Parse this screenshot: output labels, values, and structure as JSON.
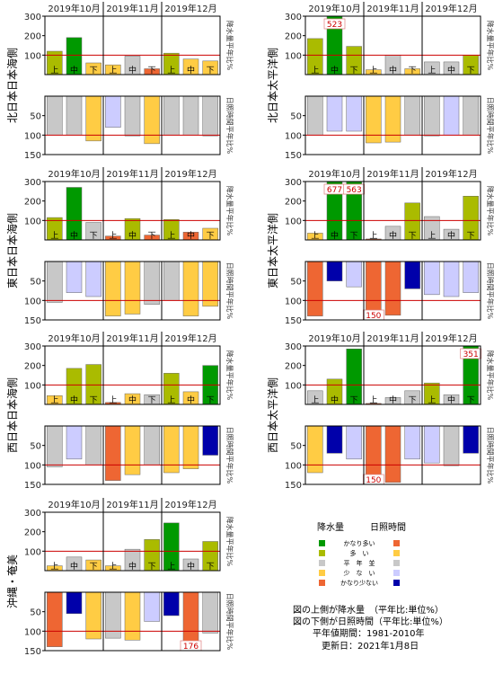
{
  "months": [
    "2019年10月",
    "2019年11月",
    "2019年12月"
  ],
  "periods": [
    "上",
    "中",
    "下"
  ],
  "precip_ticks": [
    100,
    200,
    300
  ],
  "sun_ticks": [
    50,
    100,
    150
  ],
  "side_label_precip": "降水量平年比%",
  "side_label_sun": "日照時間平年比%",
  "colors": {
    "very_many": "#009900",
    "many": "#aabb00",
    "normal": "#c8c8c8",
    "few": "#ffcc44",
    "very_few": "#ee6633",
    "sun_very_many": "#ee6633",
    "sun_many": "#ffcc44",
    "sun_few": "#ccccff",
    "sun_very_few": "#0000aa",
    "normal_line": "#cc0000"
  },
  "chart_data": [
    {
      "type": "bar",
      "region": "北日本日本海側",
      "categories": [
        "10月上",
        "10月中",
        "10月下",
        "11月上",
        "11月中",
        "11月下",
        "12月上",
        "12月中",
        "12月下"
      ],
      "precip": [
        120,
        190,
        60,
        50,
        95,
        30,
        110,
        80,
        70
      ],
      "precip_class": [
        "many",
        "very_many",
        "few",
        "few",
        "normal",
        "very_few",
        "many",
        "few",
        "few"
      ],
      "precip_overflow": [
        null,
        null,
        null,
        null,
        null,
        null,
        null,
        null,
        null
      ],
      "sunshine": [
        100,
        100,
        115,
        80,
        102,
        122,
        100,
        100,
        102
      ],
      "sunshine_class": [
        "normal",
        "normal",
        "few",
        "sun_few",
        "normal",
        "few",
        "normal",
        "normal",
        "normal"
      ],
      "sunshine_overflow": [
        null,
        null,
        null,
        null,
        null,
        null,
        null,
        null,
        null
      ]
    },
    {
      "type": "bar",
      "region": "北日本太平洋側",
      "categories": [
        "10月上",
        "10月中",
        "10月下",
        "11月上",
        "11月中",
        "11月下",
        "12月上",
        "12月中",
        "12月下"
      ],
      "precip": [
        185,
        300,
        145,
        25,
        100,
        30,
        65,
        65,
        100
      ],
      "precip_class": [
        "many",
        "very_many",
        "many",
        "few",
        "normal",
        "few",
        "normal",
        "normal",
        "many"
      ],
      "precip_overflow": [
        null,
        "523",
        null,
        null,
        null,
        null,
        null,
        null,
        null
      ],
      "sunshine": [
        100,
        90,
        90,
        120,
        118,
        100,
        102,
        100,
        100
      ],
      "sunshine_class": [
        "normal",
        "sun_few",
        "sun_few",
        "few",
        "few",
        "normal",
        "normal",
        "sun_few",
        "normal"
      ],
      "sunshine_overflow": [
        null,
        null,
        null,
        null,
        null,
        null,
        null,
        null,
        null
      ]
    },
    {
      "type": "bar",
      "region": "東日本日本海側",
      "categories": [
        "10月上",
        "10月中",
        "10月下",
        "11月上",
        "11月中",
        "11月下",
        "12月上",
        "12月中",
        "12月下"
      ],
      "precip": [
        115,
        270,
        90,
        20,
        110,
        25,
        105,
        40,
        60
      ],
      "precip_class": [
        "many",
        "very_many",
        "normal",
        "very_few",
        "many",
        "very_few",
        "many",
        "very_few",
        "few"
      ],
      "precip_overflow": [
        null,
        null,
        null,
        null,
        null,
        null,
        null,
        null,
        null
      ],
      "sunshine": [
        105,
        80,
        90,
        140,
        135,
        110,
        100,
        140,
        115
      ],
      "sunshine_class": [
        "normal",
        "sun_few",
        "sun_few",
        "few",
        "few",
        "normal",
        "normal",
        "few",
        "few"
      ],
      "sunshine_overflow": [
        null,
        null,
        null,
        null,
        null,
        null,
        null,
        null,
        null
      ]
    },
    {
      "type": "bar",
      "region": "東日本太平洋側",
      "categories": [
        "10月上",
        "10月中",
        "10月下",
        "11月上",
        "11月中",
        "11月下",
        "12月上",
        "12月中",
        "12月下"
      ],
      "precip": [
        35,
        300,
        300,
        5,
        70,
        190,
        120,
        55,
        225
      ],
      "precip_class": [
        "few",
        "very_many",
        "very_many",
        "very_few",
        "normal",
        "many",
        "normal",
        "normal",
        "many"
      ],
      "precip_overflow": [
        null,
        "677",
        "563",
        null,
        null,
        null,
        null,
        null,
        null
      ],
      "sunshine": [
        140,
        50,
        65,
        150,
        138,
        70,
        85,
        90,
        80
      ],
      "sunshine_class": [
        "sun_very_many",
        "sun_very_few",
        "sun_few",
        "sun_very_many",
        "sun_very_many",
        "sun_very_few",
        "sun_few",
        "sun_few",
        "sun_few"
      ],
      "sunshine_overflow": [
        null,
        null,
        null,
        "150",
        null,
        null,
        null,
        null,
        null
      ]
    },
    {
      "type": "bar",
      "region": "西日本日本海側",
      "categories": [
        "10月上",
        "10月中",
        "10月下",
        "11月上",
        "11月中",
        "11月下",
        "12月上",
        "12月中",
        "12月下"
      ],
      "precip": [
        45,
        185,
        205,
        10,
        55,
        50,
        160,
        65,
        200
      ],
      "precip_class": [
        "few",
        "many",
        "many",
        "very_few",
        "few",
        "normal",
        "many",
        "few",
        "very_many"
      ],
      "precip_overflow": [
        null,
        null,
        null,
        null,
        null,
        null,
        null,
        null,
        null
      ],
      "sunshine": [
        105,
        85,
        100,
        140,
        125,
        100,
        120,
        110,
        75
      ],
      "sunshine_class": [
        "normal",
        "sun_few",
        "normal",
        "sun_very_many",
        "few",
        "normal",
        "few",
        "few",
        "sun_very_few"
      ],
      "sunshine_overflow": [
        null,
        null,
        null,
        null,
        null,
        null,
        null,
        null,
        null
      ]
    },
    {
      "type": "bar",
      "region": "西日本太平洋側",
      "categories": [
        "10月上",
        "10月中",
        "10月下",
        "11月上",
        "11月中",
        "11月下",
        "12月上",
        "12月中",
        "12月下"
      ],
      "precip": [
        70,
        130,
        285,
        5,
        35,
        70,
        110,
        50,
        300
      ],
      "precip_class": [
        "normal",
        "many",
        "very_many",
        "very_few",
        "normal",
        "normal",
        "many",
        "normal",
        "very_many"
      ],
      "precip_overflow": [
        null,
        null,
        null,
        null,
        null,
        null,
        null,
        null,
        "351"
      ],
      "sunshine": [
        120,
        70,
        85,
        150,
        145,
        85,
        95,
        102,
        70
      ],
      "sunshine_class": [
        "few",
        "sun_very_few",
        "sun_few",
        "sun_very_many",
        "sun_very_many",
        "sun_few",
        "sun_few",
        "normal",
        "sun_very_few"
      ],
      "sunshine_overflow": [
        null,
        null,
        null,
        "150",
        null,
        null,
        null,
        null,
        null
      ]
    },
    {
      "type": "bar",
      "region": "沖縄・奄美",
      "categories": [
        "10月上",
        "10月中",
        "10月下",
        "11月上",
        "11月中",
        "11月下",
        "12月上",
        "12月中",
        "12月下"
      ],
      "precip": [
        25,
        70,
        55,
        25,
        110,
        160,
        245,
        60,
        150
      ],
      "precip_class": [
        "few",
        "normal",
        "few",
        "few",
        "normal",
        "many",
        "very_many",
        "normal",
        "many"
      ],
      "precip_overflow": [
        null,
        null,
        null,
        null,
        null,
        null,
        null,
        null,
        null
      ],
      "sunshine": [
        140,
        55,
        120,
        118,
        123,
        75,
        60,
        150,
        105
      ],
      "sunshine_class": [
        "sun_very_many",
        "sun_very_few",
        "few",
        "normal",
        "few",
        "sun_few",
        "sun_very_few",
        "sun_very_many",
        "normal"
      ],
      "sunshine_overflow": [
        null,
        null,
        null,
        null,
        null,
        null,
        null,
        "176",
        null
      ]
    }
  ],
  "legend": {
    "title_precip": "降水量",
    "title_sun": "日照時間",
    "rows": [
      {
        "label": "かなり多い",
        "precip": "very_many",
        "sun": "sun_very_many"
      },
      {
        "label": "多　い",
        "precip": "many",
        "sun": "sun_many"
      },
      {
        "label": "平　年　並",
        "precip": "normal",
        "sun": "normal"
      },
      {
        "label": "少　な　い",
        "precip": "few",
        "sun": "sun_few"
      },
      {
        "label": "かなり少ない",
        "precip": "very_few",
        "sun": "sun_very_few"
      }
    ]
  },
  "notes": {
    "upper": "図の上側が降水量　（平年比:単位%）",
    "lower": "図の下側が日照時間（平年比:単位%）",
    "period": "平年値期間：1981-2010年",
    "updated": "更新日：2021年1月8日"
  }
}
